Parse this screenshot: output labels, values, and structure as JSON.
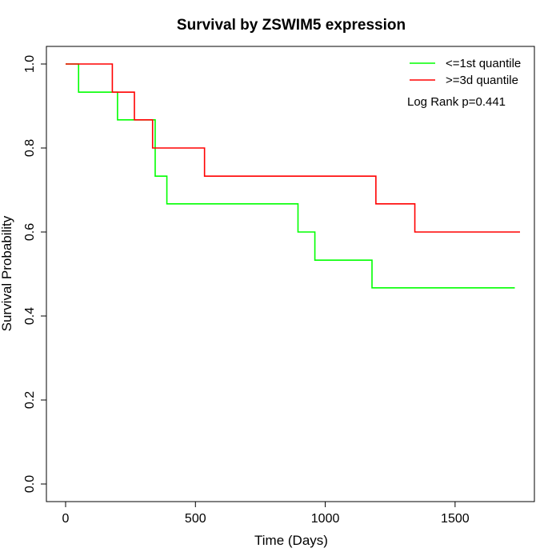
{
  "chart_data": {
    "type": "line",
    "step": true,
    "title": "Survival by ZSWIM5 expression",
    "xlabel": "Time (Days)",
    "ylabel": "Survival Probability",
    "xlim": [
      0,
      1750
    ],
    "ylim": [
      0,
      1.0
    ],
    "x_ticks": [
      0,
      500,
      1000,
      1500
    ],
    "y_ticks": [
      0.0,
      0.2,
      0.4,
      0.6,
      0.8,
      1.0
    ],
    "x_tick_labels": [
      "0",
      "500",
      "1000",
      "1500"
    ],
    "y_tick_labels": [
      "0.0",
      "0.2",
      "0.4",
      "0.6",
      "0.8",
      "1.0"
    ],
    "grid": false,
    "legend_position": "top-right",
    "annotation": "Log Rank p=0.441",
    "series": [
      {
        "name": "<=1st quantile",
        "color": "#00ff00",
        "x": [
          0,
          50,
          200,
          345,
          390,
          895,
          960,
          1180,
          1730
        ],
        "y": [
          1.0,
          0.933,
          0.867,
          0.733,
          0.667,
          0.6,
          0.533,
          0.467,
          0.467
        ]
      },
      {
        "name": ">=3d quantile",
        "color": "#ff0000",
        "x": [
          0,
          180,
          265,
          335,
          535,
          1195,
          1345,
          1750
        ],
        "y": [
          1.0,
          0.933,
          0.867,
          0.8,
          0.733,
          0.667,
          0.6,
          0.6
        ]
      }
    ]
  }
}
